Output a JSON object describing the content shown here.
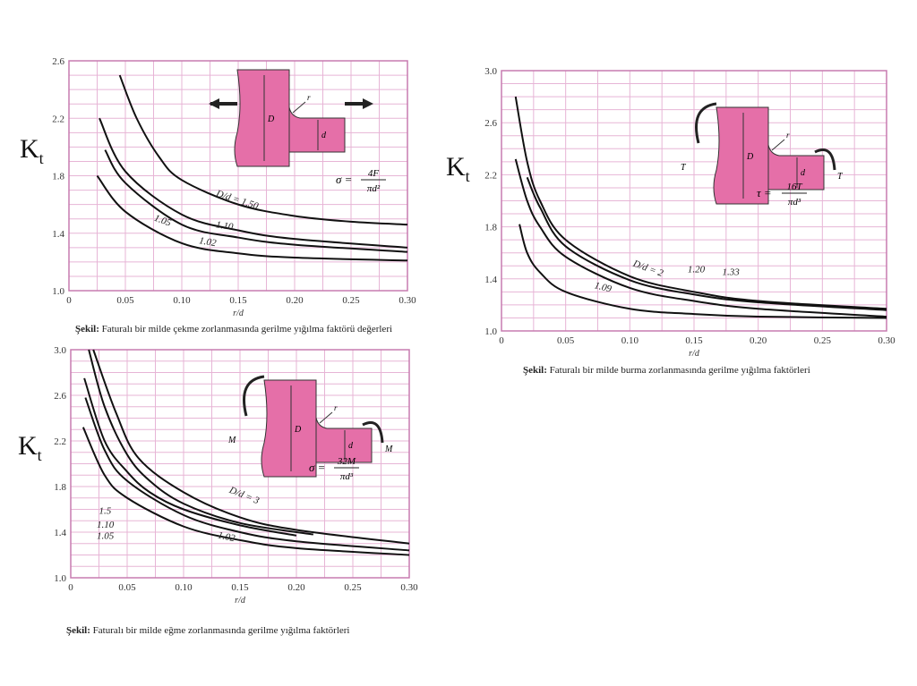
{
  "kt_label": "K",
  "kt_sub": "t",
  "colors": {
    "grid": "#e7b5d6",
    "frame": "#c77bb0",
    "shaft": "#e56fa8",
    "curve": "#111"
  },
  "chart_data": [
    {
      "type": "line",
      "title": "Faturalı bir milde çekme zorlanmasında gerilme yığılma faktörü değerleri",
      "caption_prefix": "Şekil:",
      "xlabel": "r/d",
      "ylabel": "Kt",
      "xlim": [
        0,
        0.3
      ],
      "ylim": [
        1.0,
        2.6
      ],
      "yticks": [
        "1.0",
        "1.4",
        "1.8",
        "2.2",
        "2.6"
      ],
      "xticks": [
        "0",
        "0.05",
        "0.10",
        "0.15",
        "0.20",
        "0.25",
        "0.30"
      ],
      "grid": true,
      "load": "tension",
      "formula": {
        "lhs": "σ =",
        "num": "4F",
        "den": "πd²"
      },
      "series": [
        {
          "name": "D/d = 1.50",
          "points": [
            [
              0.045,
              2.5
            ],
            [
              0.06,
              2.2
            ],
            [
              0.08,
              1.93
            ],
            [
              0.1,
              1.77
            ],
            [
              0.15,
              1.6
            ],
            [
              0.2,
              1.52
            ],
            [
              0.25,
              1.48
            ],
            [
              0.3,
              1.46
            ]
          ]
        },
        {
          "name": "1.10",
          "points": [
            [
              0.027,
              2.2
            ],
            [
              0.05,
              1.83
            ],
            [
              0.1,
              1.53
            ],
            [
              0.15,
              1.42
            ],
            [
              0.2,
              1.36
            ],
            [
              0.3,
              1.3
            ]
          ]
        },
        {
          "name": "1.05",
          "points": [
            [
              0.032,
              1.98
            ],
            [
              0.05,
              1.75
            ],
            [
              0.1,
              1.46
            ],
            [
              0.15,
              1.37
            ],
            [
              0.2,
              1.32
            ],
            [
              0.3,
              1.27
            ]
          ]
        },
        {
          "name": "1.02",
          "points": [
            [
              0.025,
              1.8
            ],
            [
              0.05,
              1.55
            ],
            [
              0.1,
              1.33
            ],
            [
              0.15,
              1.26
            ],
            [
              0.2,
              1.23
            ],
            [
              0.3,
              1.21
            ]
          ]
        }
      ]
    },
    {
      "type": "line",
      "title": "Faturalı bir milde burma zorlanmasında gerilme yığılma faktörleri",
      "caption_prefix": "Şekil:",
      "xlabel": "r/d",
      "ylabel": "Kt",
      "xlim": [
        0,
        0.3
      ],
      "ylim": [
        1.0,
        3.0
      ],
      "yticks": [
        "1.0",
        "1.4",
        "1.8",
        "2.2",
        "2.6",
        "3.0"
      ],
      "xticks": [
        "0",
        "0.05",
        "0.10",
        "0.15",
        "0.20",
        "0.25",
        "0.30"
      ],
      "grid": true,
      "load": "torsion",
      "formula": {
        "lhs": "τ =",
        "num": "16T",
        "den": "πd³"
      },
      "series": [
        {
          "name": "D/d = 2",
          "points": [
            [
              0.011,
              2.8
            ],
            [
              0.02,
              2.3
            ],
            [
              0.03,
              2.0
            ],
            [
              0.05,
              1.7
            ],
            [
              0.1,
              1.42
            ],
            [
              0.15,
              1.3
            ],
            [
              0.2,
              1.23
            ],
            [
              0.3,
              1.17
            ]
          ]
        },
        {
          "name": "1.33",
          "points": [
            [
              0.02,
              2.18
            ],
            [
              0.03,
              1.95
            ],
            [
              0.05,
              1.65
            ],
            [
              0.1,
              1.39
            ],
            [
              0.15,
              1.28
            ],
            [
              0.2,
              1.22
            ],
            [
              0.3,
              1.16
            ]
          ]
        },
        {
          "name": "1.20",
          "points": [
            [
              0.011,
              2.32
            ],
            [
              0.02,
              2.0
            ],
            [
              0.03,
              1.8
            ],
            [
              0.05,
              1.57
            ],
            [
              0.1,
              1.33
            ],
            [
              0.15,
              1.23
            ],
            [
              0.2,
              1.17
            ],
            [
              0.3,
              1.11
            ]
          ]
        },
        {
          "name": "1.09",
          "points": [
            [
              0.014,
              1.82
            ],
            [
              0.02,
              1.6
            ],
            [
              0.03,
              1.45
            ],
            [
              0.05,
              1.3
            ],
            [
              0.1,
              1.17
            ],
            [
              0.15,
              1.13
            ],
            [
              0.2,
              1.11
            ],
            [
              0.3,
              1.1
            ]
          ]
        }
      ]
    },
    {
      "type": "line",
      "title": "Faturalı bir milde eğme zorlanmasında gerilme yığılma faktörleri",
      "caption_prefix": "Şekil:",
      "xlabel": "r/d",
      "ylabel": "Kt",
      "xlim": [
        0,
        0.3
      ],
      "ylim": [
        1.0,
        3.0
      ],
      "yticks": [
        "1.0",
        "1.4",
        "1.8",
        "2.2",
        "2.6",
        "3.0"
      ],
      "xticks": [
        "0",
        "0.05",
        "0.10",
        "0.15",
        "0.20",
        "0.25",
        "0.30"
      ],
      "grid": true,
      "load": "bending",
      "formula": {
        "lhs": "σ =",
        "num": "32M",
        "den": "πd³"
      },
      "series": [
        {
          "name": "D/d = 3",
          "points": [
            [
              0.02,
              3.0
            ],
            [
              0.04,
              2.45
            ],
            [
              0.06,
              2.05
            ],
            [
              0.1,
              1.75
            ],
            [
              0.15,
              1.53
            ],
            [
              0.2,
              1.42
            ],
            [
              0.3,
              1.3
            ]
          ]
        },
        {
          "name": "1.5",
          "points": [
            [
              0.016,
              3.0
            ],
            [
              0.03,
              2.5
            ],
            [
              0.05,
              2.08
            ],
            [
              0.07,
              1.85
            ],
            [
              0.1,
              1.65
            ],
            [
              0.15,
              1.48
            ],
            [
              0.215,
              1.38
            ]
          ]
        },
        {
          "name": "1.10",
          "points": [
            [
              0.012,
              2.75
            ],
            [
              0.03,
              2.2
            ],
            [
              0.05,
              1.93
            ],
            [
              0.07,
              1.75
            ],
            [
              0.1,
              1.6
            ],
            [
              0.15,
              1.46
            ],
            [
              0.2,
              1.37
            ]
          ]
        },
        {
          "name": "1.05",
          "points": [
            [
              0.013,
              2.58
            ],
            [
              0.03,
              2.12
            ],
            [
              0.05,
              1.85
            ],
            [
              0.1,
              1.55
            ],
            [
              0.15,
              1.4
            ],
            [
              0.2,
              1.32
            ],
            [
              0.3,
              1.24
            ]
          ]
        },
        {
          "name": "1.02",
          "points": [
            [
              0.011,
              2.32
            ],
            [
              0.03,
              1.9
            ],
            [
              0.05,
              1.7
            ],
            [
              0.1,
              1.45
            ],
            [
              0.15,
              1.33
            ],
            [
              0.2,
              1.26
            ],
            [
              0.3,
              1.2
            ]
          ]
        }
      ]
    }
  ]
}
